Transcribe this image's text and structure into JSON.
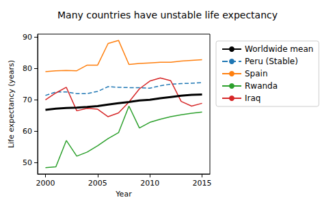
{
  "chart_data": {
    "type": "line",
    "title": "Many countries have unstable life expectancy",
    "x_label": "Year",
    "y_label": "Life expectancy (years)",
    "x": [
      2000,
      2001,
      2002,
      2003,
      2004,
      2005,
      2006,
      2007,
      2008,
      2009,
      2010,
      2011,
      2012,
      2013,
      2014,
      2015
    ],
    "series": [
      {
        "name": "Worldwide mean",
        "color": "#000000",
        "line_style": "solid",
        "values": [
          66.8,
          67.2,
          67.4,
          67.5,
          67.7,
          68.0,
          68.5,
          68.9,
          69.3,
          69.8,
          70.0,
          70.5,
          70.9,
          71.3,
          71.6,
          71.7
        ]
      },
      {
        "name": "Peru (Stable)",
        "color": "#1f77b4",
        "line_style": "dashed",
        "values": [
          71.4,
          72.5,
          72.5,
          72.0,
          72.0,
          72.7,
          74.2,
          74.0,
          73.9,
          73.9,
          73.7,
          74.5,
          75.0,
          75.2,
          75.3,
          75.5
        ]
      },
      {
        "name": "Spain",
        "color": "#ff7f0e",
        "line_style": "solid",
        "values": [
          79.0,
          79.3,
          79.4,
          79.3,
          81.1,
          81.1,
          88.0,
          89.0,
          81.3,
          81.6,
          81.8,
          82.0,
          82.0,
          82.4,
          82.6,
          82.8
        ]
      },
      {
        "name": "Rwanda",
        "color": "#2ca02c",
        "line_style": "solid",
        "values": [
          48.3,
          48.6,
          57.0,
          52.0,
          53.3,
          55.3,
          57.6,
          59.5,
          68.0,
          61.0,
          62.8,
          63.8,
          64.6,
          65.2,
          65.7,
          66.1
        ]
      },
      {
        "name": "Iraq",
        "color": "#d62728",
        "line_style": "solid",
        "values": [
          70.0,
          72.2,
          74.0,
          66.5,
          67.3,
          67.0,
          64.6,
          65.8,
          69.3,
          73.5,
          76.0,
          77.0,
          76.1,
          69.5,
          68.0,
          68.9
        ]
      }
    ],
    "xlim": [
      1999.25,
      2015.75
    ],
    "xticks": [
      2000,
      2005,
      2010,
      2015
    ],
    "ylim": [
      46.3,
      91.0
    ],
    "yticks": [
      50,
      60,
      70,
      80,
      90
    ],
    "grid": false,
    "legend": "right"
  }
}
